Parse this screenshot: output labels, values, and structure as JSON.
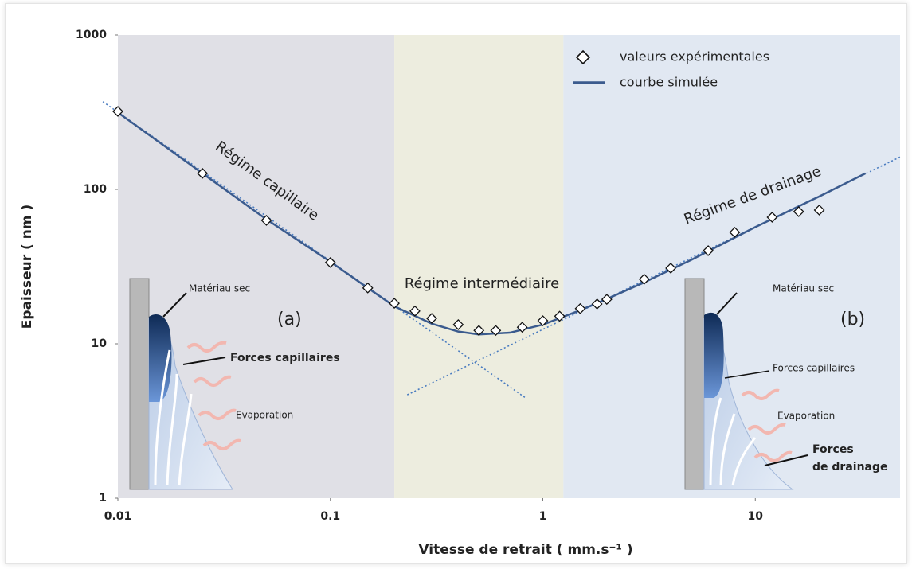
{
  "chart_data": {
    "type": "scatter",
    "xlabel": "Vitesse de retrait  ( mm.s⁻¹ )",
    "ylabel": "Epaisseur ( nm )",
    "xscale": "log",
    "yscale": "log",
    "xlim": [
      0.01,
      48
    ],
    "ylim": [
      1,
      1000
    ],
    "xticks": [
      0.01,
      0.1,
      1,
      10
    ],
    "yticks": [
      1,
      10,
      100,
      1000
    ],
    "grid": false,
    "legend": "upper right",
    "regions": [
      {
        "x0": 0.01,
        "x1": 0.2,
        "color": "#e0e0e6",
        "label": "Régime capillaire"
      },
      {
        "x0": 0.2,
        "x1": 1.25,
        "color": "#ededdf",
        "label": "Régime intermédiaire"
      },
      {
        "x0": 1.25,
        "x1": 48,
        "color": "#e1e8f2",
        "label": "Régime de drainage"
      }
    ],
    "series": [
      {
        "name": "valeurs expérimentales",
        "type": "scatter",
        "color": "#111111",
        "x": [
          0.01,
          0.025,
          0.05,
          0.1,
          0.15,
          0.2,
          0.25,
          0.3,
          0.4,
          0.5,
          0.6,
          0.8,
          1,
          1.2,
          1.5,
          1.8,
          2,
          3,
          4,
          6,
          8,
          12,
          16,
          20
        ],
        "values": [
          320,
          127,
          63,
          33.6,
          23,
          18.3,
          16.3,
          14.6,
          13.3,
          12.2,
          12.2,
          12.8,
          14.1,
          15.1,
          16.9,
          18.1,
          19.4,
          26.2,
          30.9,
          40.1,
          52.7,
          66,
          71.8,
          73.5
        ]
      },
      {
        "name": "courbe simulée",
        "type": "line",
        "color": "#3b5b8e",
        "x": [
          0.01,
          0.05,
          0.1,
          0.15,
          0.2,
          0.3,
          0.4,
          0.5,
          0.7,
          1,
          1.5,
          2,
          3,
          5,
          10,
          20,
          33
        ],
        "values": [
          315,
          64,
          34,
          23,
          17.5,
          13.5,
          12,
          11.5,
          11.8,
          13.3,
          16.5,
          19.5,
          25,
          35,
          57,
          90,
          127
        ]
      }
    ],
    "extensions": [
      {
        "color": "#4a7cc0",
        "x": [
          0.0085,
          0.83
        ],
        "values": [
          370,
          4.46
        ]
      },
      {
        "color": "#4a7cc0",
        "x": [
          0.23,
          48
        ],
        "values": [
          4.67,
          162
        ]
      }
    ],
    "illustrations": {
      "a": {
        "tag": "(a)",
        "dry": "Matériau sec",
        "capillary": "Forces capillaires",
        "evaporation": "Evaporation"
      },
      "b": {
        "tag": "(b)",
        "dry": "Matériau sec",
        "capillary": "Forces capillaires",
        "evaporation": "Evaporation",
        "drainage": [
          "Forces",
          "de drainage"
        ]
      }
    }
  }
}
